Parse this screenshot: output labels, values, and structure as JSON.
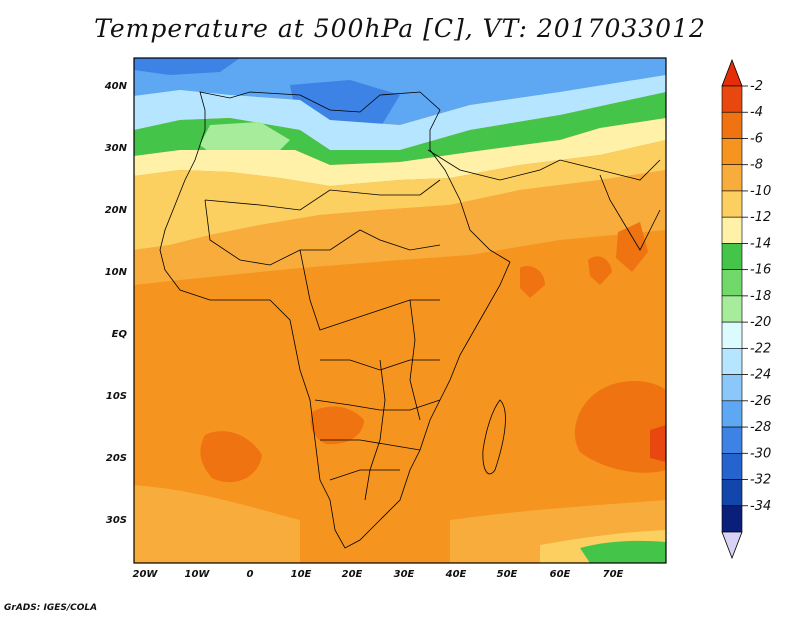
{
  "title": "Temperature at 500hPa [C], VT: 2017033012",
  "credit": "GrADS: IGES/COLA",
  "lat_labels": [
    "40N",
    "30N",
    "20N",
    "10N",
    "EQ",
    "10S",
    "20S",
    "30S"
  ],
  "lon_labels": [
    "20W",
    "10W",
    "0",
    "10E",
    "20E",
    "30E",
    "40E",
    "50E",
    "60E",
    "70E"
  ],
  "colorbar": {
    "labels": [
      "-2",
      "-4",
      "-6",
      "-8",
      "-10",
      "-12",
      "-14",
      "-16",
      "-18",
      "-20",
      "-22",
      "-24",
      "-26",
      "-28",
      "-30",
      "-32",
      "-34"
    ],
    "colors": [
      "#e8470f",
      "#f07312",
      "#f5941e",
      "#f8ac3c",
      "#fbcf60",
      "#fff1a8",
      "#45c44a",
      "#71d86a",
      "#a7ec9a",
      "#dbfbff",
      "#b6e6ff",
      "#8cc7fa",
      "#5ea7f2",
      "#3d82e5",
      "#2563cf",
      "#1346ab",
      "#0a1f7a"
    ],
    "top_arrow_color": "#e52d08",
    "bottom_arrow_color": "#d9d3f7"
  }
}
